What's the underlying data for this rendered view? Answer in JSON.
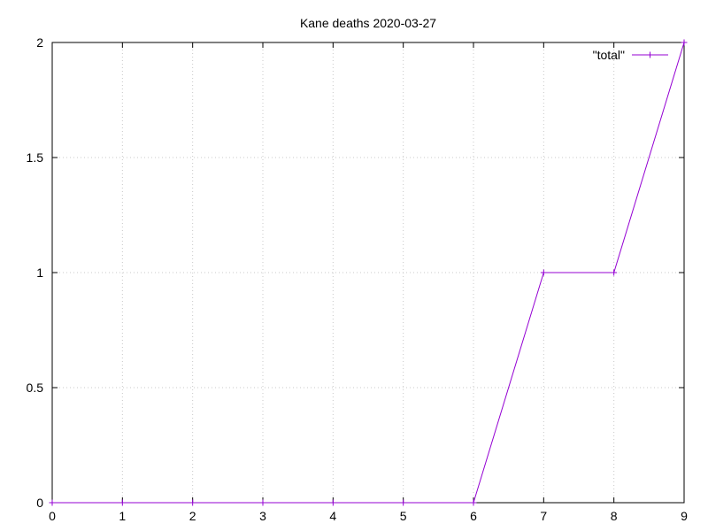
{
  "chart_data": {
    "type": "line",
    "title": "Kane deaths 2020-03-27",
    "xlabel": "",
    "ylabel": "",
    "xlim": [
      0,
      9
    ],
    "ylim": [
      0,
      2
    ],
    "x_ticks": [
      0,
      1,
      2,
      3,
      4,
      5,
      6,
      7,
      8,
      9
    ],
    "x_tick_labels": [
      "0",
      "1",
      "2",
      "3",
      "4",
      "5",
      "6",
      "7",
      "8",
      "9"
    ],
    "y_ticks": [
      0,
      0.5,
      1,
      1.5,
      2
    ],
    "y_tick_labels": [
      "0",
      "0.5",
      "1",
      "1.5",
      "2"
    ],
    "grid": true,
    "legend_position": "top-right",
    "series": [
      {
        "name": "\"total\"",
        "color": "#9400d3",
        "marker": "plus",
        "x": [
          0,
          1,
          2,
          3,
          4,
          5,
          6,
          7,
          8,
          9
        ],
        "y": [
          0,
          0,
          0,
          0,
          0,
          0,
          0,
          1,
          1,
          2
        ]
      }
    ]
  }
}
